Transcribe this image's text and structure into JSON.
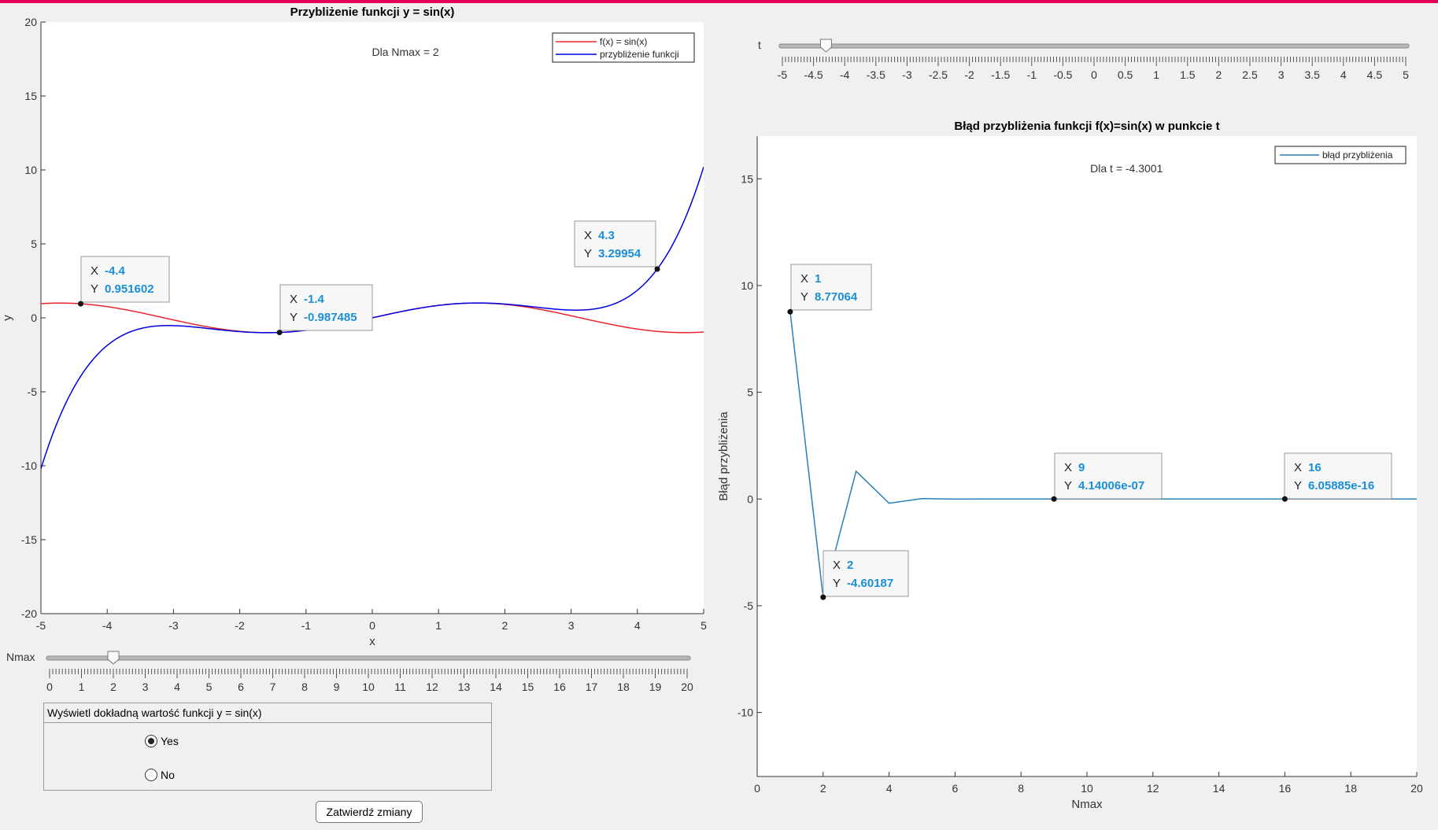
{
  "controls": {
    "nmax_label": "Nmax",
    "nmax_value": 2,
    "nmax_min": 0,
    "nmax_max": 20,
    "t_label": "t",
    "t_value": -4.3001,
    "t_min": -5,
    "t_max": 5,
    "panel_title": "Wyświetl dokładną wartość funkcji y = sin(x)",
    "radio_yes": "Yes",
    "radio_no": "No",
    "radio_selected": "Yes",
    "submit_label": "Zatwierdź zmiany"
  },
  "nmax_slider_ticks": [
    "0",
    "1",
    "2",
    "3",
    "4",
    "5",
    "6",
    "7",
    "8",
    "9",
    "10",
    "11",
    "12",
    "13",
    "14",
    "15",
    "16",
    "17",
    "18",
    "19",
    "20"
  ],
  "t_slider_ticks": [
    "-5",
    "-4.5",
    "-4",
    "-3.5",
    "-3",
    "-2.5",
    "-2",
    "-1.5",
    "-1",
    "-0.5",
    "0",
    "0.5",
    "1",
    "1.5",
    "2",
    "2.5",
    "3",
    "3.5",
    "4",
    "4.5",
    "5"
  ],
  "chart_data": [
    {
      "type": "line",
      "title": "Przybliżenie funkcji y = sin(x)",
      "annotation": "Dla Nmax = 2",
      "xlabel": "x",
      "ylabel": "y",
      "xlim": [
        -5,
        5
      ],
      "ylim": [
        -20,
        20
      ],
      "xticks": [
        -5,
        -4,
        -3,
        -2,
        -1,
        0,
        1,
        2,
        3,
        4,
        5
      ],
      "yticks": [
        -20,
        -15,
        -10,
        -5,
        0,
        5,
        10,
        15,
        20
      ],
      "legend_position": "top-right",
      "grid": false,
      "series": [
        {
          "name": "f(x) = sin(x)",
          "color": "#e8262b",
          "function": "sin",
          "terms": 0
        },
        {
          "name": "przybliżenie funkcji",
          "color": "#0000e0",
          "function": "taylor_sin",
          "terms": 3
        }
      ],
      "datatips": [
        {
          "x": "-4.4",
          "y": "0.951602"
        },
        {
          "x": "-1.4",
          "y": "-0.987485"
        },
        {
          "x": "4.3",
          "y": "3.29954"
        }
      ]
    },
    {
      "type": "line",
      "title": "Błąd przybliżenia funkcji f(x)=sin(x) w punkcie t",
      "annotation": "Dla t = -4.3001",
      "xlabel": "Nmax",
      "ylabel": "Błąd przybliżenia",
      "xlim": [
        0,
        20
      ],
      "ylim": [
        -13,
        17
      ],
      "xticks": [
        0,
        2,
        4,
        6,
        8,
        10,
        12,
        14,
        16,
        18,
        20
      ],
      "yticks": [
        -10,
        -5,
        0,
        5,
        10,
        15
      ],
      "legend_position": "top-right",
      "grid": false,
      "series": [
        {
          "name": "błąd przybliżenia",
          "color": "#2b7fb8",
          "x": [
            1,
            2,
            3,
            4,
            5,
            6,
            7,
            8,
            9,
            10,
            11,
            12,
            13,
            14,
            15,
            16,
            17,
            18,
            19,
            20
          ],
          "y": [
            8.77064,
            -4.60187,
            1.3,
            -0.2,
            0.02,
            -0.002,
            0.0001,
            0,
            4.14006e-07,
            0,
            0,
            0,
            0,
            0,
            0,
            6.05885e-16,
            0,
            0,
            0,
            0
          ]
        }
      ],
      "datatips": [
        {
          "x": "1",
          "y": "8.77064"
        },
        {
          "x": "2",
          "y": "-4.60187"
        },
        {
          "x": "9",
          "y": "4.14006e-07"
        },
        {
          "x": "16",
          "y": "6.05885e-16"
        }
      ]
    }
  ]
}
